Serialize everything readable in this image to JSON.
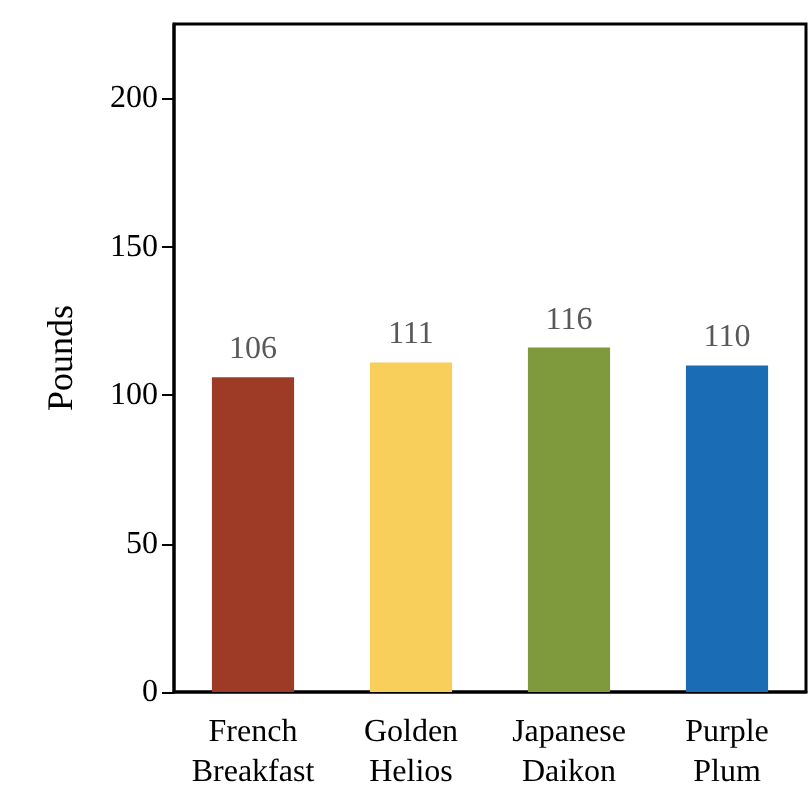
{
  "chart_data": {
    "type": "bar",
    "ylabel": "Pounds",
    "categories": [
      "French\nBreakfast",
      "Golden\nHelios",
      "Japanese\nDaikon",
      "Purple\nPlum"
    ],
    "values": [
      106,
      111,
      116,
      110
    ],
    "colors": [
      "#9e3b26",
      "#f7cf5a",
      "#7f9a3c",
      "#1a6db5"
    ],
    "ylim": [
      0,
      225
    ],
    "yticks": [
      0,
      50,
      100,
      150,
      200
    ],
    "grid": false,
    "data_labels": true
  }
}
